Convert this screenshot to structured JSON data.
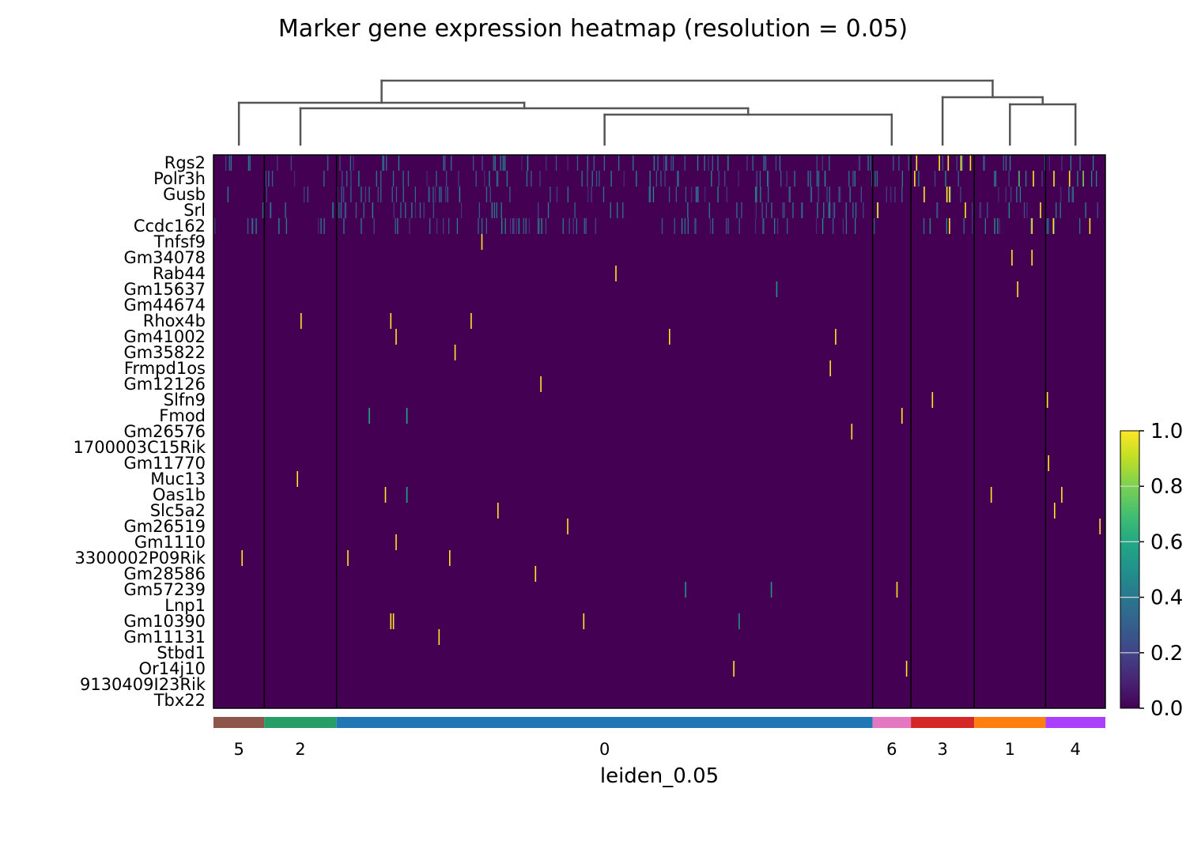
{
  "chart_data": {
    "type": "heatmap",
    "title": "Marker gene expression heatmap (resolution = 0.05)",
    "xlabel": "leiden_0.05",
    "ylabel": "",
    "genes": [
      "Rgs2",
      "Polr3h",
      "Gusb",
      "Srl",
      "Ccdc162",
      "Tnfsf9",
      "Gm34078",
      "Rab44",
      "Gm15637",
      "Gm44674",
      "Rhox4b",
      "Gm41002",
      "Gm35822",
      "Frmpd1os",
      "Gm12126",
      "Slfn9",
      "Fmod",
      "Gm26576",
      "1700003C15Rik",
      "Gm11770",
      "Muc13",
      "Oas1b",
      "Slc5a2",
      "Gm26519",
      "Gm1110",
      "3300002P09Rik",
      "Gm28586",
      "Gm57239",
      "Lnp1",
      "Gm10390",
      "Gm11131",
      "Stbd1",
      "Or14j10",
      "9130409I23Rik",
      "Tbx22"
    ],
    "groups": [
      {
        "name": "5",
        "fraction": 0.057,
        "color": "#8c564b"
      },
      {
        "name": "2",
        "fraction": 0.081,
        "color": "#279e68"
      },
      {
        "name": "0",
        "fraction": 0.601,
        "color": "#1f77b4"
      },
      {
        "name": "6",
        "fraction": 0.043,
        "color": "#e377c2"
      },
      {
        "name": "3",
        "fraction": 0.071,
        "color": "#d62728"
      },
      {
        "name": "1",
        "fraction": 0.08,
        "color": "#ff7f0e"
      },
      {
        "name": "4",
        "fraction": 0.067,
        "color": "#aa40fc"
      }
    ],
    "dendrogram_order": [
      "5",
      "2",
      "0",
      "6",
      "3",
      "1",
      "4"
    ],
    "colorbar": {
      "colormap": "viridis",
      "range": [
        0,
        1
      ],
      "ticks": [
        "0.0",
        "0.2",
        "0.4",
        "0.6",
        "0.8",
        "1.0"
      ]
    },
    "background_value": 0.0,
    "sparse_marks": [
      {
        "gene": "Tnfsf9",
        "group": "0",
        "pos": 0.27,
        "value": 1.0
      },
      {
        "gene": "Gm34078",
        "group": "1",
        "pos": 0.52,
        "value": 1.0
      },
      {
        "gene": "Gm34078",
        "group": "1",
        "pos": 0.8,
        "value": 1.0
      },
      {
        "gene": "Rab44",
        "group": "0",
        "pos": 0.52,
        "value": 1.0
      },
      {
        "gene": "Gm15637",
        "group": "0",
        "pos": 0.82,
        "value": 0.5
      },
      {
        "gene": "Gm15637",
        "group": "1",
        "pos": 0.6,
        "value": 1.0
      },
      {
        "gene": "Rhox4b",
        "group": "2",
        "pos": 0.5,
        "value": 1.0
      },
      {
        "gene": "Rhox4b",
        "group": "0",
        "pos": 0.1,
        "value": 1.0
      },
      {
        "gene": "Rhox4b",
        "group": "0",
        "pos": 0.25,
        "value": 1.0
      },
      {
        "gene": "Gm41002",
        "group": "0",
        "pos": 0.11,
        "value": 1.0
      },
      {
        "gene": "Gm41002",
        "group": "0",
        "pos": 0.62,
        "value": 1.0
      },
      {
        "gene": "Gm41002",
        "group": "0",
        "pos": 0.93,
        "value": 1.0
      },
      {
        "gene": "Gm35822",
        "group": "0",
        "pos": 0.22,
        "value": 1.0
      },
      {
        "gene": "Frmpd1os",
        "group": "0",
        "pos": 0.92,
        "value": 1.0
      },
      {
        "gene": "Gm12126",
        "group": "0",
        "pos": 0.38,
        "value": 1.0
      },
      {
        "gene": "Slfn9",
        "group": "3",
        "pos": 0.33,
        "value": 1.0
      },
      {
        "gene": "Slfn9",
        "group": "4",
        "pos": 0.02,
        "value": 1.0
      },
      {
        "gene": "Fmod",
        "group": "0",
        "pos": 0.06,
        "value": 0.6
      },
      {
        "gene": "Fmod",
        "group": "0",
        "pos": 0.13,
        "value": 0.6
      },
      {
        "gene": "Fmod",
        "group": "6",
        "pos": 0.75,
        "value": 1.0
      },
      {
        "gene": "Gm26576",
        "group": "0",
        "pos": 0.96,
        "value": 1.0
      },
      {
        "gene": "Gm11770",
        "group": "4",
        "pos": 0.04,
        "value": 1.0
      },
      {
        "gene": "Muc13",
        "group": "2",
        "pos": 0.45,
        "value": 1.0
      },
      {
        "gene": "Oas1b",
        "group": "0",
        "pos": 0.09,
        "value": 1.0
      },
      {
        "gene": "Oas1b",
        "group": "0",
        "pos": 0.13,
        "value": 0.6
      },
      {
        "gene": "Oas1b",
        "group": "1",
        "pos": 0.23,
        "value": 1.0
      },
      {
        "gene": "Oas1b",
        "group": "4",
        "pos": 0.26,
        "value": 1.0
      },
      {
        "gene": "Slc5a2",
        "group": "0",
        "pos": 0.3,
        "value": 1.0
      },
      {
        "gene": "Slc5a2",
        "group": "4",
        "pos": 0.14,
        "value": 1.0
      },
      {
        "gene": "Gm26519",
        "group": "0",
        "pos": 0.43,
        "value": 1.0
      },
      {
        "gene": "Gm26519",
        "group": "4",
        "pos": 0.9,
        "value": 1.0
      },
      {
        "gene": "Gm1110",
        "group": "0",
        "pos": 0.11,
        "value": 1.0
      },
      {
        "gene": "3300002P09Rik",
        "group": "5",
        "pos": 0.55,
        "value": 1.0
      },
      {
        "gene": "3300002P09Rik",
        "group": "0",
        "pos": 0.02,
        "value": 1.0
      },
      {
        "gene": "3300002P09Rik",
        "group": "0",
        "pos": 0.21,
        "value": 1.0
      },
      {
        "gene": "Gm28586",
        "group": "0",
        "pos": 0.37,
        "value": 1.0
      },
      {
        "gene": "Gm57239",
        "group": "0",
        "pos": 0.65,
        "value": 0.5
      },
      {
        "gene": "Gm57239",
        "group": "0",
        "pos": 0.81,
        "value": 0.5
      },
      {
        "gene": "Gm57239",
        "group": "6",
        "pos": 0.62,
        "value": 1.0
      },
      {
        "gene": "Gm10390",
        "group": "0",
        "pos": 0.1,
        "value": 1.0
      },
      {
        "gene": "Gm10390",
        "group": "0",
        "pos": 0.105,
        "value": 1.0
      },
      {
        "gene": "Gm10390",
        "group": "0",
        "pos": 0.46,
        "value": 1.0
      },
      {
        "gene": "Gm10390",
        "group": "0",
        "pos": 0.75,
        "value": 0.5
      },
      {
        "gene": "Gm11131",
        "group": "0",
        "pos": 0.19,
        "value": 1.0
      },
      {
        "gene": "Or14j10",
        "group": "0",
        "pos": 0.74,
        "value": 1.0
      },
      {
        "gene": "Or14j10",
        "group": "6",
        "pos": 0.87,
        "value": 1.0
      },
      {
        "gene": "Rgs2",
        "group": "3",
        "pos": 0.08,
        "value": 1.0
      },
      {
        "gene": "Rgs2",
        "group": "3",
        "pos": 0.44,
        "value": 1.0
      },
      {
        "gene": "Rgs2",
        "group": "3",
        "pos": 0.58,
        "value": 1.0
      },
      {
        "gene": "Rgs2",
        "group": "3",
        "pos": 0.78,
        "value": 1.0
      },
      {
        "gene": "Rgs2",
        "group": "3",
        "pos": 0.93,
        "value": 1.0
      },
      {
        "gene": "Polr3h",
        "group": "3",
        "pos": 0.05,
        "value": 1.0
      },
      {
        "gene": "Polr3h",
        "group": "1",
        "pos": 0.62,
        "value": 0.7
      },
      {
        "gene": "Polr3h",
        "group": "1",
        "pos": 0.82,
        "value": 1.0
      },
      {
        "gene": "Polr3h",
        "group": "4",
        "pos": 0.13,
        "value": 1.0
      },
      {
        "gene": "Polr3h",
        "group": "4",
        "pos": 0.39,
        "value": 1.0
      },
      {
        "gene": "Polr3h",
        "group": "4",
        "pos": 0.62,
        "value": 0.8
      },
      {
        "gene": "Gusb",
        "group": "3",
        "pos": 0.2,
        "value": 1.0
      },
      {
        "gene": "Gusb",
        "group": "3",
        "pos": 0.56,
        "value": 1.0
      },
      {
        "gene": "Gusb",
        "group": "3",
        "pos": 0.6,
        "value": 1.0
      },
      {
        "gene": "Srl",
        "group": "6",
        "pos": 0.12,
        "value": 1.0
      },
      {
        "gene": "Srl",
        "group": "3",
        "pos": 0.85,
        "value": 1.0
      },
      {
        "gene": "Srl",
        "group": "1",
        "pos": 0.92,
        "value": 1.0
      },
      {
        "gene": "Ccdc162",
        "group": "3",
        "pos": 0.6,
        "value": 1.0
      },
      {
        "gene": "Ccdc162",
        "group": "4",
        "pos": 0.12,
        "value": 1.0
      },
      {
        "gene": "Ccdc162",
        "group": "4",
        "pos": 0.73,
        "value": 1.0
      },
      {
        "gene": "Ccdc162",
        "group": "1",
        "pos": 0.8,
        "value": 1.0
      }
    ],
    "dense_rows": [
      "Rgs2",
      "Polr3h",
      "Gusb",
      "Srl",
      "Ccdc162"
    ],
    "dense_value_range": [
      0.1,
      0.5
    ]
  }
}
